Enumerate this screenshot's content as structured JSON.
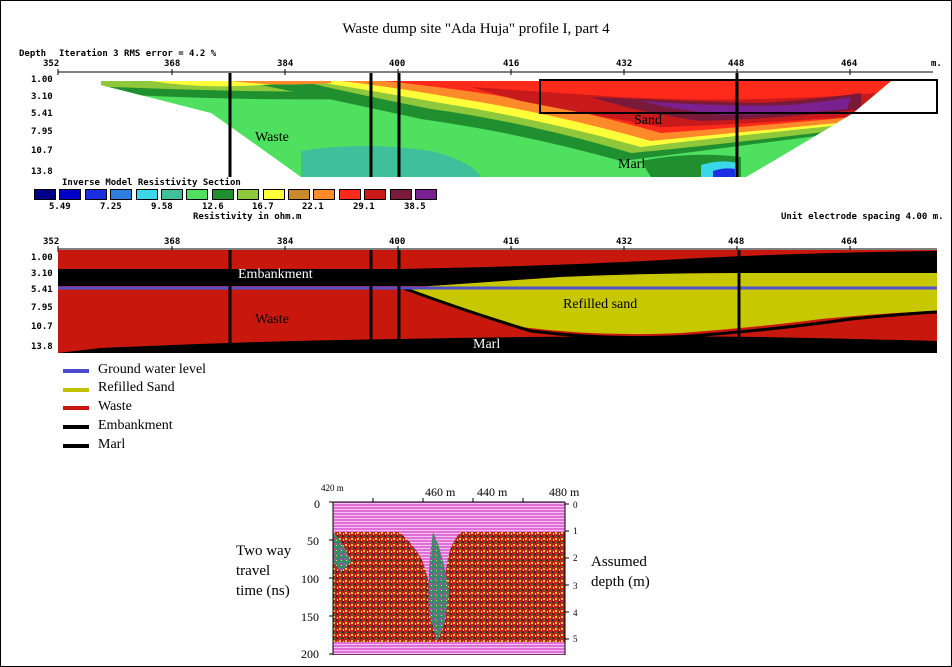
{
  "title": "Waste dump site \"Ada Huja\" profile I, part 4",
  "header": {
    "depth_label": "Depth",
    "iteration_text": "Iteration 3 RMS error = 4.2 %",
    "unit": "m."
  },
  "x_ticks": [
    "352",
    "368",
    "384",
    "400",
    "416",
    "432",
    "448",
    "464"
  ],
  "depth_ticks": [
    "1.00",
    "3.10",
    "5.41",
    "7.95",
    "10.7",
    "13.8"
  ],
  "resistivity_section": {
    "title": "Inverse Model Resistivity Section",
    "colorbar_colors": [
      "#00008b",
      "#0000c8",
      "#1a30e0",
      "#2f7fe0",
      "#39d7e7",
      "#3fbf9a",
      "#4fe060",
      "#1f8f2f",
      "#8fc83a",
      "#ffff3a",
      "#c88a2a",
      "#ff8a2a",
      "#ff2a1a",
      "#c81a1a",
      "#7a1a3a",
      "#7a2090"
    ],
    "colorbar_values": [
      "5.49",
      "7.25",
      "9.58",
      "12.6",
      "16.7",
      "22.1",
      "29.1",
      "38.5"
    ],
    "colorbar_unit": "Resistivity in ohm.m",
    "spacing_note": "Unit electrode spacing 4.00 m.",
    "labels": {
      "waste": "Waste",
      "sand": "Sand",
      "marl": "Marl"
    }
  },
  "interpretation_section": {
    "labels": {
      "embankment": "Embankment",
      "refilled_sand": "Refilled sand",
      "waste": "Waste",
      "marl": "Marl"
    },
    "colors": {
      "waste": "#c8180e",
      "embankment": "#000000",
      "refilled_sand": "#c8c800",
      "water": "#5050c8"
    }
  },
  "legend": [
    {
      "label": "Ground water level",
      "color": "#4a4ad0"
    },
    {
      "label": "Refilled Sand",
      "color": "#c0c000"
    },
    {
      "label": "Waste",
      "color": "#c8180e"
    },
    {
      "label": "Embankment",
      "color": "#000000"
    },
    {
      "label": "Marl",
      "color": "#000000"
    }
  ],
  "gpr": {
    "top_labels": [
      "420 m",
      "460 m",
      "440 m",
      "480 m"
    ],
    "y_ticks": [
      "0",
      "50",
      "100",
      "150",
      "200"
    ],
    "depth_ticks": [
      "0",
      "1",
      "2",
      "3",
      "4",
      "5"
    ],
    "left_caption": [
      "Two way",
      "travel",
      "time (ns)"
    ],
    "right_caption": [
      "Assumed",
      "depth (m)"
    ]
  }
}
